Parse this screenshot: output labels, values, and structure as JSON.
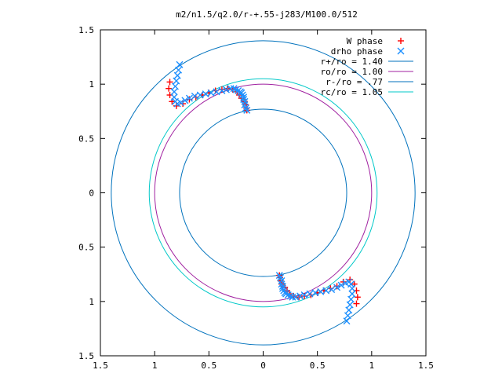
{
  "chart_data": {
    "type": "scatter",
    "title": "m2/n1.5/q2.0/r-+.55-j283/M100.0/512",
    "xlabel": "",
    "ylabel": "",
    "xlim": [
      -1.5,
      1.5
    ],
    "ylim": [
      -1.5,
      1.5
    ],
    "x_ticks": [
      {
        "value": -1.5,
        "label": "1.5"
      },
      {
        "value": -1.0,
        "label": "1"
      },
      {
        "value": -0.5,
        "label": "0.5"
      },
      {
        "value": 0.0,
        "label": "0"
      },
      {
        "value": 0.5,
        "label": "0.5"
      },
      {
        "value": 1.0,
        "label": "1"
      },
      {
        "value": 1.5,
        "label": "1.5"
      }
    ],
    "y_ticks": [
      {
        "value": 1.5,
        "label": "1.5"
      },
      {
        "value": 1.0,
        "label": "1"
      },
      {
        "value": 0.5,
        "label": "0.5"
      },
      {
        "value": 0.0,
        "label": "0"
      },
      {
        "value": -0.5,
        "label": "0.5"
      },
      {
        "value": -1.0,
        "label": "1"
      },
      {
        "value": -1.5,
        "label": "1.5"
      }
    ],
    "grid": false,
    "legend_position": "top-right",
    "series": [
      {
        "name": "W phase",
        "kind": "points",
        "marker": "plus",
        "color": "#ff0000",
        "x": [
          -0.86,
          -0.87,
          -0.86,
          -0.84,
          -0.8,
          -0.74,
          -0.68,
          -0.62,
          -0.56,
          -0.5,
          -0.44,
          -0.38,
          -0.33,
          -0.28,
          -0.24,
          -0.22,
          -0.2,
          -0.17,
          -0.16,
          -0.155,
          -0.15,
          0.86,
          0.87,
          0.86,
          0.84,
          0.8,
          0.74,
          0.68,
          0.62,
          0.56,
          0.5,
          0.44,
          0.38,
          0.33,
          0.28,
          0.24,
          0.22,
          0.2,
          0.17,
          0.16,
          0.155,
          0.15
        ],
        "y": [
          1.02,
          0.96,
          0.9,
          0.84,
          0.8,
          0.82,
          0.86,
          0.88,
          0.9,
          0.92,
          0.94,
          0.95,
          0.96,
          0.95,
          0.93,
          0.9,
          0.87,
          0.84,
          0.81,
          0.78,
          0.76,
          -1.02,
          -0.96,
          -0.9,
          -0.84,
          -0.8,
          -0.82,
          -0.86,
          -0.88,
          -0.9,
          -0.92,
          -0.94,
          -0.95,
          -0.96,
          -0.95,
          -0.93,
          -0.9,
          -0.87,
          -0.84,
          -0.81,
          -0.78,
          -0.76
        ]
      },
      {
        "name": "drho phase",
        "kind": "points",
        "marker": "cross",
        "color": "#1e90ff",
        "x": [
          -0.77,
          -0.78,
          -0.79,
          -0.8,
          -0.81,
          -0.82,
          -0.82,
          -0.81,
          -0.79,
          -0.76,
          -0.72,
          -0.68,
          -0.63,
          -0.58,
          -0.53,
          -0.48,
          -0.43,
          -0.38,
          -0.34,
          -0.3,
          -0.27,
          -0.25,
          -0.23,
          -0.21,
          -0.2,
          -0.19,
          -0.18,
          -0.18,
          -0.17,
          -0.17,
          -0.16,
          -0.15,
          0.77,
          0.78,
          0.79,
          0.8,
          0.81,
          0.82,
          0.82,
          0.81,
          0.79,
          0.76,
          0.72,
          0.68,
          0.63,
          0.58,
          0.53,
          0.48,
          0.43,
          0.38,
          0.34,
          0.3,
          0.27,
          0.25,
          0.23,
          0.21,
          0.2,
          0.19,
          0.18,
          0.18,
          0.17,
          0.17,
          0.16,
          0.15
        ],
        "y": [
          1.18,
          1.13,
          1.08,
          1.03,
          0.98,
          0.93,
          0.88,
          0.84,
          0.82,
          0.83,
          0.85,
          0.87,
          0.89,
          0.9,
          0.91,
          0.92,
          0.93,
          0.94,
          0.95,
          0.96,
          0.96,
          0.95,
          0.94,
          0.93,
          0.92,
          0.9,
          0.88,
          0.86,
          0.84,
          0.81,
          0.78,
          0.76,
          -1.18,
          -1.13,
          -1.08,
          -1.03,
          -0.98,
          -0.93,
          -0.88,
          -0.84,
          -0.82,
          -0.83,
          -0.85,
          -0.87,
          -0.89,
          -0.9,
          -0.91,
          -0.92,
          -0.93,
          -0.94,
          -0.95,
          -0.96,
          -0.96,
          -0.95,
          -0.94,
          -0.93,
          -0.92,
          -0.9,
          -0.88,
          -0.86,
          -0.84,
          -0.81,
          -0.78,
          -0.76
        ]
      },
      {
        "name": "r+/ro = 1.40",
        "kind": "circle",
        "radius": 1.4,
        "color": "#0072bd"
      },
      {
        "name": "ro/ro = 1.00",
        "kind": "circle",
        "radius": 1.0,
        "color": "#a020a0"
      },
      {
        "name": "r-/ro = .77",
        "kind": "circle",
        "radius": 0.77,
        "color": "#0072bd"
      },
      {
        "name": "rc/ro = 1.05",
        "kind": "circle",
        "radius": 1.05,
        "color": "#00c8c8"
      }
    ]
  }
}
